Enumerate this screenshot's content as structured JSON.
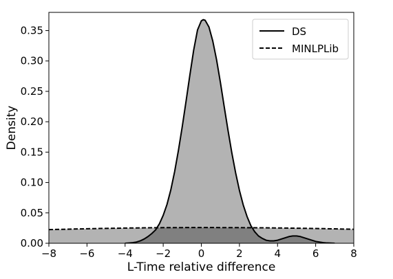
{
  "chart_data": {
    "type": "area",
    "xlabel": "L-Time relative difference",
    "ylabel": "Density",
    "xlim": [
      -8,
      8
    ],
    "ylim": [
      0,
      0.38
    ],
    "xticks": [
      -8,
      -6,
      -4,
      -2,
      0,
      2,
      4,
      6,
      8
    ],
    "xtick_labels": [
      "−8",
      "−6",
      "−4",
      "−2",
      "0",
      "2",
      "4",
      "6",
      "8"
    ],
    "yticks": [
      0.0,
      0.05,
      0.1,
      0.15,
      0.2,
      0.25,
      0.3,
      0.35
    ],
    "ytick_labels": [
      "0.00",
      "0.05",
      "0.10",
      "0.15",
      "0.20",
      "0.25",
      "0.30",
      "0.35"
    ],
    "grid": false,
    "legend_position": "top-right",
    "series": [
      {
        "name": "DS",
        "line_style": "solid",
        "x": [
          -4,
          -3.8,
          -3.6,
          -3.4,
          -3.2,
          -3.0,
          -2.8,
          -2.6,
          -2.4,
          -2.2,
          -2.0,
          -1.8,
          -1.6,
          -1.4,
          -1.2,
          -1.0,
          -0.8,
          -0.6,
          -0.4,
          -0.2,
          0.0,
          0.1,
          0.2,
          0.4,
          0.6,
          0.8,
          1.0,
          1.2,
          1.4,
          1.6,
          1.8,
          2.0,
          2.2,
          2.4,
          2.6,
          2.8,
          3.0,
          3.2,
          3.4,
          3.6,
          3.8,
          4.0,
          4.2,
          4.4,
          4.6,
          4.8,
          5.0,
          5.2,
          5.4,
          5.6,
          5.8,
          6.0,
          6.2,
          6.4,
          6.6,
          7.0
        ],
        "y": [
          0.0,
          0.0005,
          0.001,
          0.002,
          0.004,
          0.007,
          0.011,
          0.016,
          0.022,
          0.032,
          0.046,
          0.064,
          0.088,
          0.118,
          0.153,
          0.192,
          0.234,
          0.277,
          0.318,
          0.351,
          0.366,
          0.368,
          0.367,
          0.356,
          0.333,
          0.302,
          0.265,
          0.225,
          0.186,
          0.149,
          0.116,
          0.087,
          0.063,
          0.044,
          0.029,
          0.019,
          0.012,
          0.008,
          0.005,
          0.004,
          0.004,
          0.005,
          0.007,
          0.009,
          0.011,
          0.012,
          0.012,
          0.011,
          0.009,
          0.007,
          0.005,
          0.003,
          0.002,
          0.001,
          0.0005,
          0.0
        ]
      },
      {
        "name": "MINLPLib",
        "line_style": "dashed",
        "x": [
          -8,
          -7,
          -6,
          -5,
          -4,
          -3,
          -2,
          -1,
          0,
          1,
          2,
          3,
          4,
          5,
          6,
          7,
          8
        ],
        "y": [
          0.0225,
          0.0232,
          0.0239,
          0.0245,
          0.025,
          0.0254,
          0.0257,
          0.0258,
          0.0259,
          0.0258,
          0.0257,
          0.0255,
          0.0252,
          0.0248,
          0.0243,
          0.0237,
          0.023
        ]
      }
    ],
    "colors": {
      "fill": "#b3b3b3",
      "overlap_fill": "#808080",
      "line": "#000000",
      "background": "#ffffff"
    }
  }
}
